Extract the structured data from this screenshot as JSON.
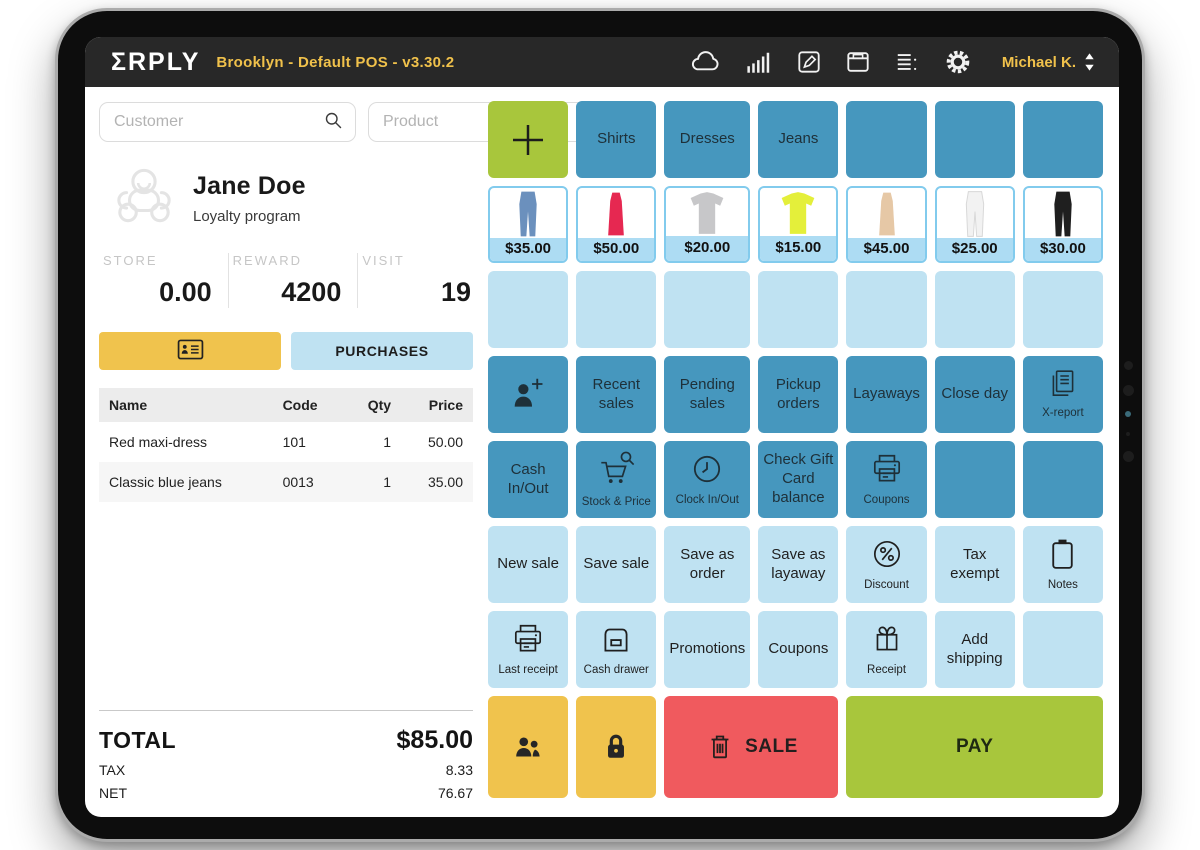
{
  "topbar": {
    "logo": "ΣRPLY",
    "app_title": "Brooklyn - Default POS - v3.30.2",
    "user": "Michael K.",
    "icons": [
      "cloud-icon",
      "signal-bars-icon",
      "edit-icon",
      "archive-icon",
      "menu-list-icon",
      "gear-icon"
    ]
  },
  "left": {
    "customer_placeholder": "Customer",
    "product_placeholder": "Product",
    "customer": {
      "name": "Jane Doe",
      "subtitle": "Loyalty program"
    },
    "stats": [
      {
        "label": "STORE",
        "value": "0.00"
      },
      {
        "label": "REWARD",
        "value": "4200"
      },
      {
        "label": "VISIT",
        "value": "19"
      }
    ],
    "buttons": {
      "purchases": "PURCHASES"
    },
    "table": {
      "headers": [
        "Name",
        "Code",
        "Qty",
        "Price"
      ],
      "rows": [
        {
          "name": "Red maxi-dress",
          "code": "101",
          "qty": "1",
          "price": "50.00"
        },
        {
          "name": "Classic blue jeans",
          "code": "0013",
          "qty": "1",
          "price": "35.00"
        }
      ]
    },
    "totals": {
      "total_label": "TOTAL",
      "total_value": "$85.00",
      "tax_label": "TAX",
      "tax_value": "8.33",
      "net_label": "NET",
      "net_value": "76.67"
    }
  },
  "grid": {
    "rows": [
      {
        "cells": [
          {
            "kind": "icon",
            "style": "green",
            "icon": "plus-icon",
            "name": "add-product-button"
          },
          {
            "kind": "text",
            "style": "dark",
            "label": "Shirts"
          },
          {
            "kind": "text",
            "style": "dark",
            "label": "Dresses"
          },
          {
            "kind": "text",
            "style": "dark",
            "label": "Jeans"
          },
          {
            "kind": "empty",
            "style": "dark"
          },
          {
            "kind": "empty",
            "style": "dark"
          },
          {
            "kind": "empty",
            "style": "dark"
          }
        ]
      },
      {
        "cells": [
          {
            "kind": "product",
            "shape": "pants",
            "color": "#6b90bd",
            "price": "$35.00",
            "name": "blue-jeans"
          },
          {
            "kind": "product",
            "shape": "dress",
            "color": "#e62851",
            "price": "$50.00",
            "name": "red-dress"
          },
          {
            "kind": "product",
            "shape": "shirt",
            "color": "#c7c7c9",
            "price": "$20.00",
            "name": "grey-polo-shirt"
          },
          {
            "kind": "product",
            "shape": "shirt",
            "color": "#e4ef3a",
            "price": "$15.00",
            "name": "yellow-top"
          },
          {
            "kind": "product",
            "shape": "dress",
            "color": "#e6c8a6",
            "price": "$45.00",
            "name": "beige-dress"
          },
          {
            "kind": "product",
            "shape": "pants",
            "color": "#f2f2f2",
            "stroke": "#d8d8d8",
            "price": "$25.00",
            "name": "white-pants"
          },
          {
            "kind": "product",
            "shape": "pants",
            "color": "#1f1f1f",
            "price": "$30.00",
            "name": "black-pants"
          }
        ]
      },
      {
        "cells": [
          {
            "kind": "empty",
            "style": "light"
          },
          {
            "kind": "empty",
            "style": "light"
          },
          {
            "kind": "empty",
            "style": "light"
          },
          {
            "kind": "empty",
            "style": "light"
          },
          {
            "kind": "empty",
            "style": "light"
          },
          {
            "kind": "empty",
            "style": "light"
          },
          {
            "kind": "empty",
            "style": "light"
          }
        ]
      },
      {
        "cells": [
          {
            "kind": "icon",
            "style": "dark",
            "icon": "add-customer-icon",
            "name": "add-customer-button"
          },
          {
            "kind": "text",
            "style": "dark",
            "label": "Recent sales"
          },
          {
            "kind": "text",
            "style": "dark",
            "label": "Pending sales"
          },
          {
            "kind": "text",
            "style": "dark",
            "label": "Pickup orders"
          },
          {
            "kind": "text",
            "style": "dark",
            "label": "Layaways"
          },
          {
            "kind": "text",
            "style": "dark",
            "label": "Close day"
          },
          {
            "kind": "iconlabel",
            "style": "dark",
            "icon": "report-icon",
            "label": "X-report"
          }
        ]
      },
      {
        "cells": [
          {
            "kind": "text",
            "style": "dark",
            "label": "Cash In/Out"
          },
          {
            "kind": "iconlabel",
            "style": "dark",
            "icon": "stock-price-icon",
            "label": "Stock & Price"
          },
          {
            "kind": "iconlabel",
            "style": "dark",
            "icon": "clock-icon",
            "label": "Clock In/Out"
          },
          {
            "kind": "text",
            "style": "dark",
            "label": "Check Gift Card balance"
          },
          {
            "kind": "iconlabel",
            "style": "dark",
            "icon": "printer-icon",
            "label": "Coupons",
            "name": "print-coupons-button"
          },
          {
            "kind": "empty",
            "style": "dark"
          },
          {
            "kind": "empty",
            "style": "dark"
          }
        ]
      },
      {
        "cells": [
          {
            "kind": "text",
            "style": "light",
            "label": "New sale"
          },
          {
            "kind": "text",
            "style": "light",
            "label": "Save sale"
          },
          {
            "kind": "text",
            "style": "light",
            "label": "Save as order"
          },
          {
            "kind": "text",
            "style": "light",
            "label": "Save as layaway"
          },
          {
            "kind": "iconlabel",
            "style": "light",
            "icon": "percent-icon",
            "label": "Discount"
          },
          {
            "kind": "text",
            "style": "light",
            "label": "Tax exempt"
          },
          {
            "kind": "iconlabel",
            "style": "light",
            "icon": "clipboard-icon",
            "label": "Notes"
          }
        ]
      },
      {
        "cells": [
          {
            "kind": "iconlabel",
            "style": "light",
            "icon": "printer-icon",
            "label": "Last receipt"
          },
          {
            "kind": "iconlabel",
            "style": "light",
            "icon": "drawer-icon",
            "label": "Cash drawer"
          },
          {
            "kind": "text",
            "style": "light",
            "label": "Promotions"
          },
          {
            "kind": "text",
            "style": "light",
            "label": "Coupons"
          },
          {
            "kind": "iconlabel",
            "style": "light",
            "icon": "gift-icon",
            "label": "Receipt"
          },
          {
            "kind": "text",
            "style": "light",
            "label": "Add shipping"
          },
          {
            "kind": "empty",
            "style": "light"
          }
        ]
      }
    ],
    "bottom": [
      {
        "kind": "icon",
        "style": "yellow",
        "icon": "customers-icon",
        "span": 1,
        "name": "customers-button"
      },
      {
        "kind": "icon",
        "style": "yellow",
        "icon": "lock-icon",
        "span": 1,
        "name": "lock-button"
      },
      {
        "kind": "iconlabel",
        "style": "red",
        "icon": "trash-icon",
        "label": "SALE",
        "span": 2,
        "layout": "inline",
        "name": "void-sale-button"
      },
      {
        "kind": "text",
        "style": "green",
        "label": "PAY",
        "span": 3,
        "big": true,
        "name": "pay-button"
      }
    ]
  },
  "colors": {
    "topbar_bg": "#282828",
    "accent_text": "#f0c14b",
    "dark_blue": "#4697be",
    "light_blue": "#bfe2f2",
    "price_band": "#addcf3",
    "green": "#a8c63c",
    "yellow": "#f0c34d",
    "red": "#f05a5e"
  }
}
